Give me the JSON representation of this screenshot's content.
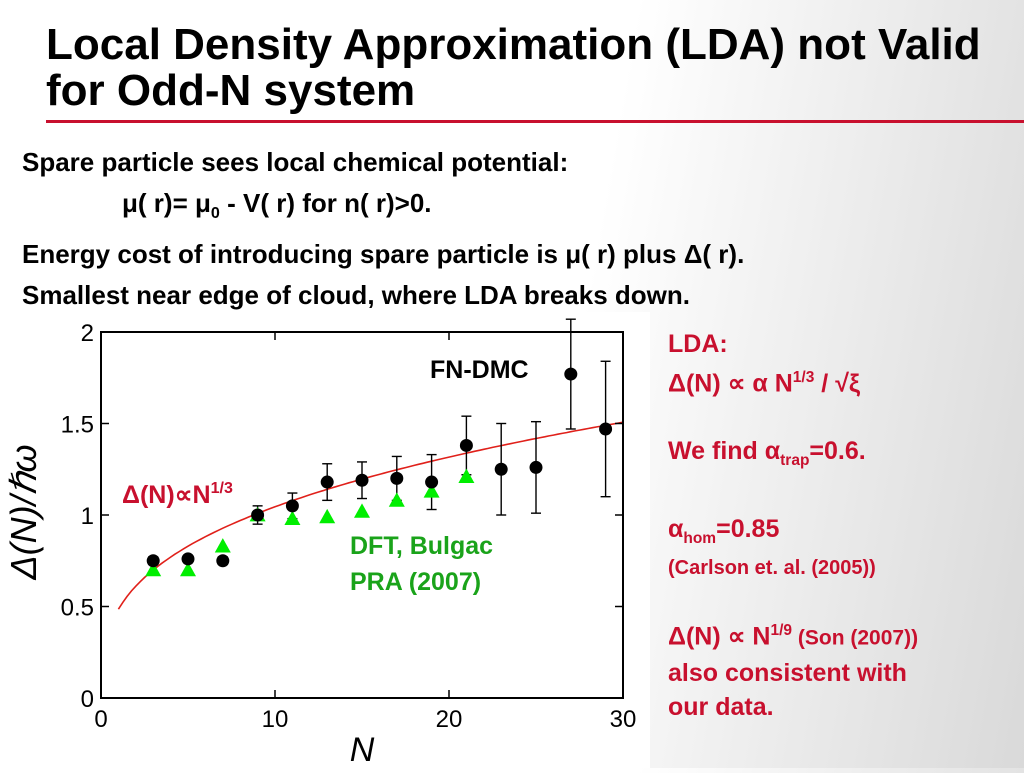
{
  "slide": {
    "title": "Local Density Approximation (LDA) not Valid for Odd-N system",
    "intro": {
      "line1": "Spare particle sees local chemical potential:",
      "line2": {
        "mu": "μ",
        "a": "( r)= ",
        "mu0": "μ",
        "sub0": "0",
        "b": " - V( r) for n( r)>0."
      },
      "line3": {
        "a": "Energy cost of introducing spare particle is ",
        "mu": "μ",
        "b": "( r) plus ",
        "delta": "Δ",
        "c": "( r)."
      },
      "line4": "Smallest near edge of cloud, where LDA breaks down."
    },
    "side": {
      "lda_heading": "LDA:",
      "lda_formula": {
        "a": "Δ(N) ∝ α N",
        "sup": "1/3",
        "b": " / √ξ"
      },
      "we_find": {
        "a": "We find α",
        "sub": "trap",
        "b": "=0.6."
      },
      "hom": {
        "a": "α",
        "sub": "hom",
        "b": "=0.85"
      },
      "hom_ref": "(Carlson et. al. (2005))",
      "son": {
        "a": "Δ(N) ∝ N",
        "sup": "1/9",
        "ref": " (Son (2007))"
      },
      "consistent_line1": "also consistent with",
      "consistent_line2": "our data."
    }
  },
  "chart_data": {
    "type": "scatter",
    "xlabel": "N",
    "ylabel": "Δ(N)/ℏω",
    "xlim": [
      0,
      30
    ],
    "ylim": [
      0,
      2
    ],
    "xticks": [
      "0",
      "10",
      "20",
      "30"
    ],
    "yticks": [
      "0",
      "0.5",
      "1",
      "1.5",
      "2"
    ],
    "series": [
      {
        "name": "FN-DMC",
        "marker": "circle",
        "color": "#000000",
        "x": [
          3,
          5,
          7,
          9,
          11,
          13,
          15,
          17,
          19,
          21,
          23,
          25,
          27,
          29
        ],
        "y": [
          0.75,
          0.76,
          0.75,
          1.0,
          1.05,
          1.18,
          1.19,
          1.2,
          1.18,
          1.38,
          1.25,
          1.26,
          1.77,
          1.47
        ],
        "err": [
          0.02,
          0.02,
          0.02,
          0.05,
          0.07,
          0.1,
          0.1,
          0.12,
          0.15,
          0.16,
          0.25,
          0.25,
          0.3,
          0.37
        ]
      },
      {
        "name": "DFT, Bulgac PRA (2007)",
        "marker": "triangle",
        "color": "#00ee00",
        "x": [
          3,
          5,
          7,
          9,
          11,
          13,
          15,
          17,
          19,
          21
        ],
        "y": [
          0.7,
          0.7,
          0.83,
          1.0,
          0.98,
          0.99,
          1.02,
          1.08,
          1.13,
          1.21
        ]
      },
      {
        "name": "Δ(N)∝N1/3",
        "marker": "line",
        "color": "#e0201a",
        "formula": "0.485*N^(1/3)"
      }
    ],
    "annotations": {
      "fndmc": "FN-DMC",
      "fit": {
        "a": "Δ(N)∝N",
        "sup": "1/3"
      },
      "dft_line1": "DFT, Bulgac",
      "dft_line2": "PRA (2007)"
    },
    "colors": {
      "fndmc": "#000000",
      "dft": "#00ee00",
      "fit": "#e0201a",
      "annotation_green": "#1aa31a",
      "annotation_red": "#c8102e"
    }
  }
}
